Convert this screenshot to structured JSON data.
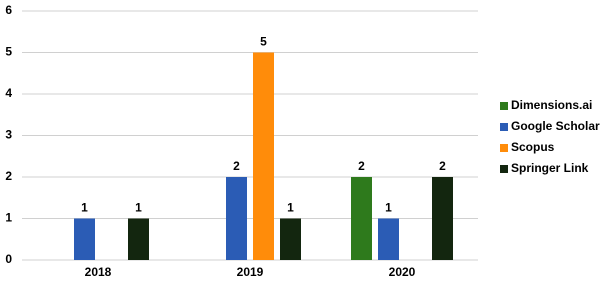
{
  "chart_data": {
    "type": "bar",
    "categories": [
      "2018",
      "2019",
      "2020"
    ],
    "series": [
      {
        "name": "Dimensions.ai",
        "color": "#2e7a1c",
        "values": [
          null,
          null,
          2
        ]
      },
      {
        "name": "Google Scholar",
        "color": "#2b5cb5",
        "values": [
          1,
          2,
          1
        ]
      },
      {
        "name": "Scopus",
        "color": "#ff8c0a",
        "values": [
          null,
          5,
          null
        ]
      },
      {
        "name": "Springer Link",
        "color": "#13260f",
        "values": [
          1,
          1,
          2
        ]
      }
    ],
    "ylim": [
      0,
      6
    ],
    "yticks": [
      0,
      1,
      2,
      3,
      4,
      5,
      6
    ],
    "grid": true,
    "legend": "right"
  }
}
